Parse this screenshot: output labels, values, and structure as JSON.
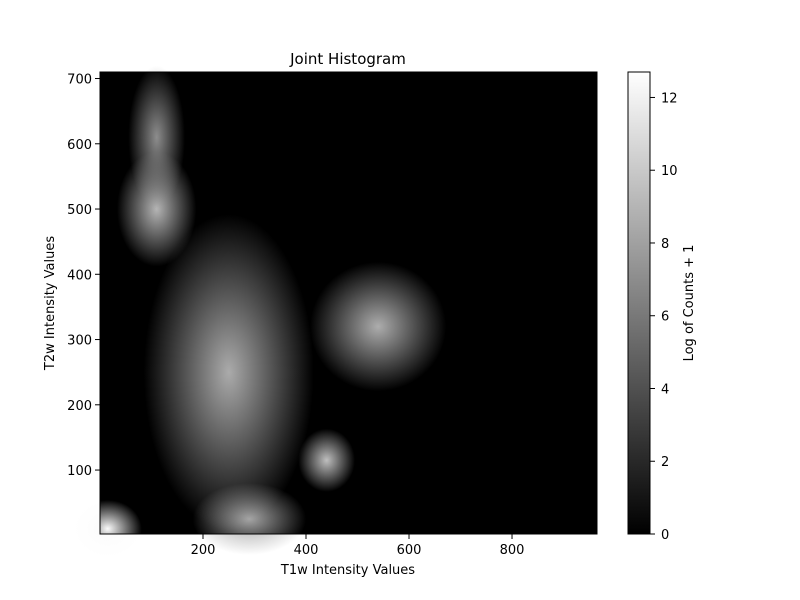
{
  "chart_data": {
    "type": "heatmap",
    "title": "Joint Histogram",
    "xlabel": "T1w Intensity Values",
    "ylabel": "T2w Intensity Values",
    "xlim": [
      0,
      965
    ],
    "ylim": [
      2,
      710
    ],
    "x_ticks": [
      200,
      400,
      600,
      800
    ],
    "y_ticks": [
      100,
      200,
      300,
      400,
      500,
      600,
      700
    ],
    "colormap": "gray",
    "colorbar": {
      "label": "Log of Counts + 1",
      "range": [
        0,
        12.7
      ],
      "ticks": [
        0,
        2,
        4,
        6,
        8,
        10,
        12
      ]
    },
    "grid": false,
    "density_features": [
      {
        "x": 15,
        "y": 10,
        "log_count": 12.5,
        "sx": 30,
        "sy": 20
      },
      {
        "x": 110,
        "y": 500,
        "log_count": 9.0,
        "sx": 35,
        "sy": 40
      },
      {
        "x": 110,
        "y": 610,
        "log_count": 7.0,
        "sx": 25,
        "sy": 50
      },
      {
        "x": 540,
        "y": 320,
        "log_count": 8.6,
        "sx": 60,
        "sy": 45
      },
      {
        "x": 440,
        "y": 115,
        "log_count": 9.5,
        "sx": 25,
        "sy": 22
      },
      {
        "x": 290,
        "y": 25,
        "log_count": 8.2,
        "sx": 50,
        "sy": 25
      },
      {
        "x": 250,
        "y": 250,
        "log_count": 8.5,
        "sx": 75,
        "sy": 110
      }
    ]
  }
}
